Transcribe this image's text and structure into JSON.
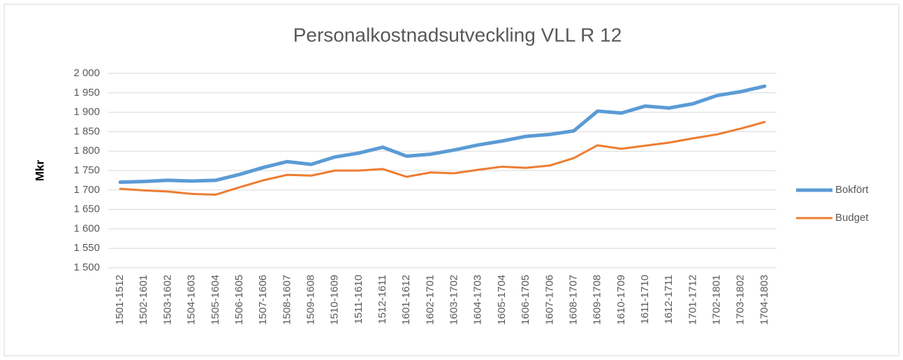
{
  "chart_data": {
    "type": "line",
    "title": "Personalkostnadsutveckling   VLL   R 12",
    "y_label": "Mkr",
    "categories": [
      "1501-1512",
      "1502-1601",
      "1503-1602",
      "1504-1603",
      "1505-1604",
      "1506-1605",
      "1507-1606",
      "1508-1607",
      "1509-1608",
      "1510-1609",
      "1511-1610",
      "1512-1611",
      "1601-1612",
      "1602-1701",
      "1603-1702",
      "1604-1703",
      "1605-1704",
      "1606-1705",
      "1607-1706",
      "1608-1707",
      "1609-1708",
      "1610-1709",
      "1611-1710",
      "1612-1711",
      "1701-1712",
      "1702-1801",
      "1703-1802",
      "1704-1803"
    ],
    "series": [
      {
        "name": "Bokfört",
        "color": "#5b9bd5",
        "values": [
          1720,
          1722,
          1725,
          1723,
          1725,
          1740,
          1758,
          1773,
          1766,
          1785,
          1795,
          1810,
          1787,
          1792,
          1803,
          1816,
          1826,
          1838,
          1843,
          1852,
          1903,
          1898,
          1916,
          1911,
          1922,
          1943,
          1953,
          1967
        ]
      },
      {
        "name": "Budget",
        "color": "#ed7d31",
        "values": [
          1703,
          1699,
          1696,
          1690,
          1688,
          1707,
          1725,
          1739,
          1737,
          1750,
          1750,
          1754,
          1734,
          1745,
          1743,
          1752,
          1760,
          1757,
          1763,
          1782,
          1815,
          1806,
          1814,
          1822,
          1833,
          1843,
          1858,
          1875
        ]
      }
    ],
    "ylim": [
      1500,
      2000
    ],
    "yticks": [
      {
        "value": 1500,
        "label": "1 500"
      },
      {
        "value": 1550,
        "label": "1 550"
      },
      {
        "value": 1600,
        "label": "1 600"
      },
      {
        "value": 1650,
        "label": "1 650"
      },
      {
        "value": 1700,
        "label": "1 700"
      },
      {
        "value": 1750,
        "label": "1 750"
      },
      {
        "value": 1800,
        "label": "1 800"
      },
      {
        "value": 1850,
        "label": "1 850"
      },
      {
        "value": 1900,
        "label": "1 900"
      },
      {
        "value": 1950,
        "label": "1 950"
      },
      {
        "value": 2000,
        "label": "2 000"
      }
    ],
    "grid": true,
    "legend": "right"
  }
}
